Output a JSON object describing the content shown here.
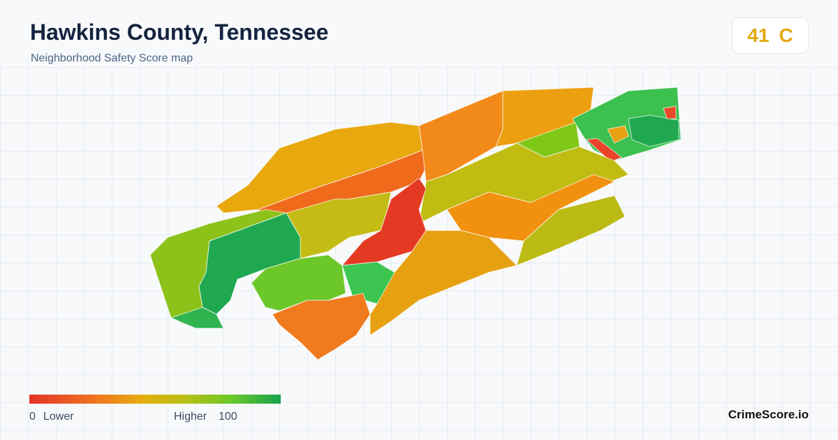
{
  "header": {
    "title": "Hawkins County, Tennessee",
    "subtitle": "Neighborhood Safety Score map"
  },
  "score": {
    "value": 41,
    "grade": "C"
  },
  "legend": {
    "min": 0,
    "min_label": "Lower",
    "max_label": "Higher",
    "max": 100
  },
  "brand": "CrimeScore.io"
}
